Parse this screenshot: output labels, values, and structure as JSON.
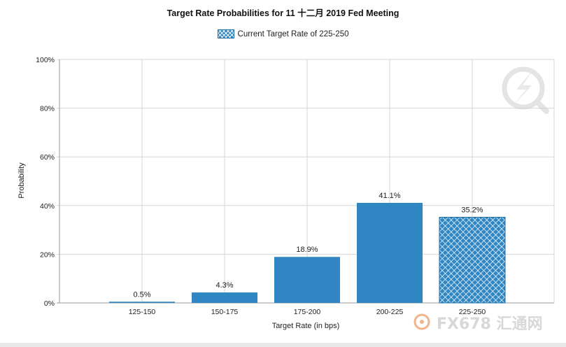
{
  "chart_data": {
    "type": "bar",
    "title": "Target Rate Probabilities for 11 十二月 2019 Fed Meeting",
    "xlabel": "Target Rate (in bps)",
    "ylabel": "Probability",
    "ylim": [
      0,
      100
    ],
    "y_ticks": [
      "0%",
      "20%",
      "40%",
      "60%",
      "80%",
      "100%"
    ],
    "grid": true,
    "legend_position": "top-center",
    "categories": [
      "125-150",
      "150-175",
      "175-200",
      "200-225",
      "225-250"
    ],
    "values": [
      0.5,
      4.3,
      18.9,
      41.1,
      35.2
    ],
    "data_labels": [
      "0.5%",
      "4.3%",
      "18.9%",
      "41.1%",
      "35.2%"
    ],
    "highlight_category": "225-250",
    "legend": [
      {
        "label": "Current Target Rate of 225-250",
        "style": "crosshatch"
      }
    ]
  },
  "colors": {
    "bar": "#2f86c2",
    "bar_border": "#1f6fa8",
    "grid": "#d6d6d6",
    "axis": "#999999",
    "text": "#222222",
    "watermark": "#c9c9c9",
    "watermark_accent": "#f0a0a0"
  },
  "watermark": {
    "brand": "FX678 汇通网",
    "icon": "lightning-magnifier-icon"
  }
}
